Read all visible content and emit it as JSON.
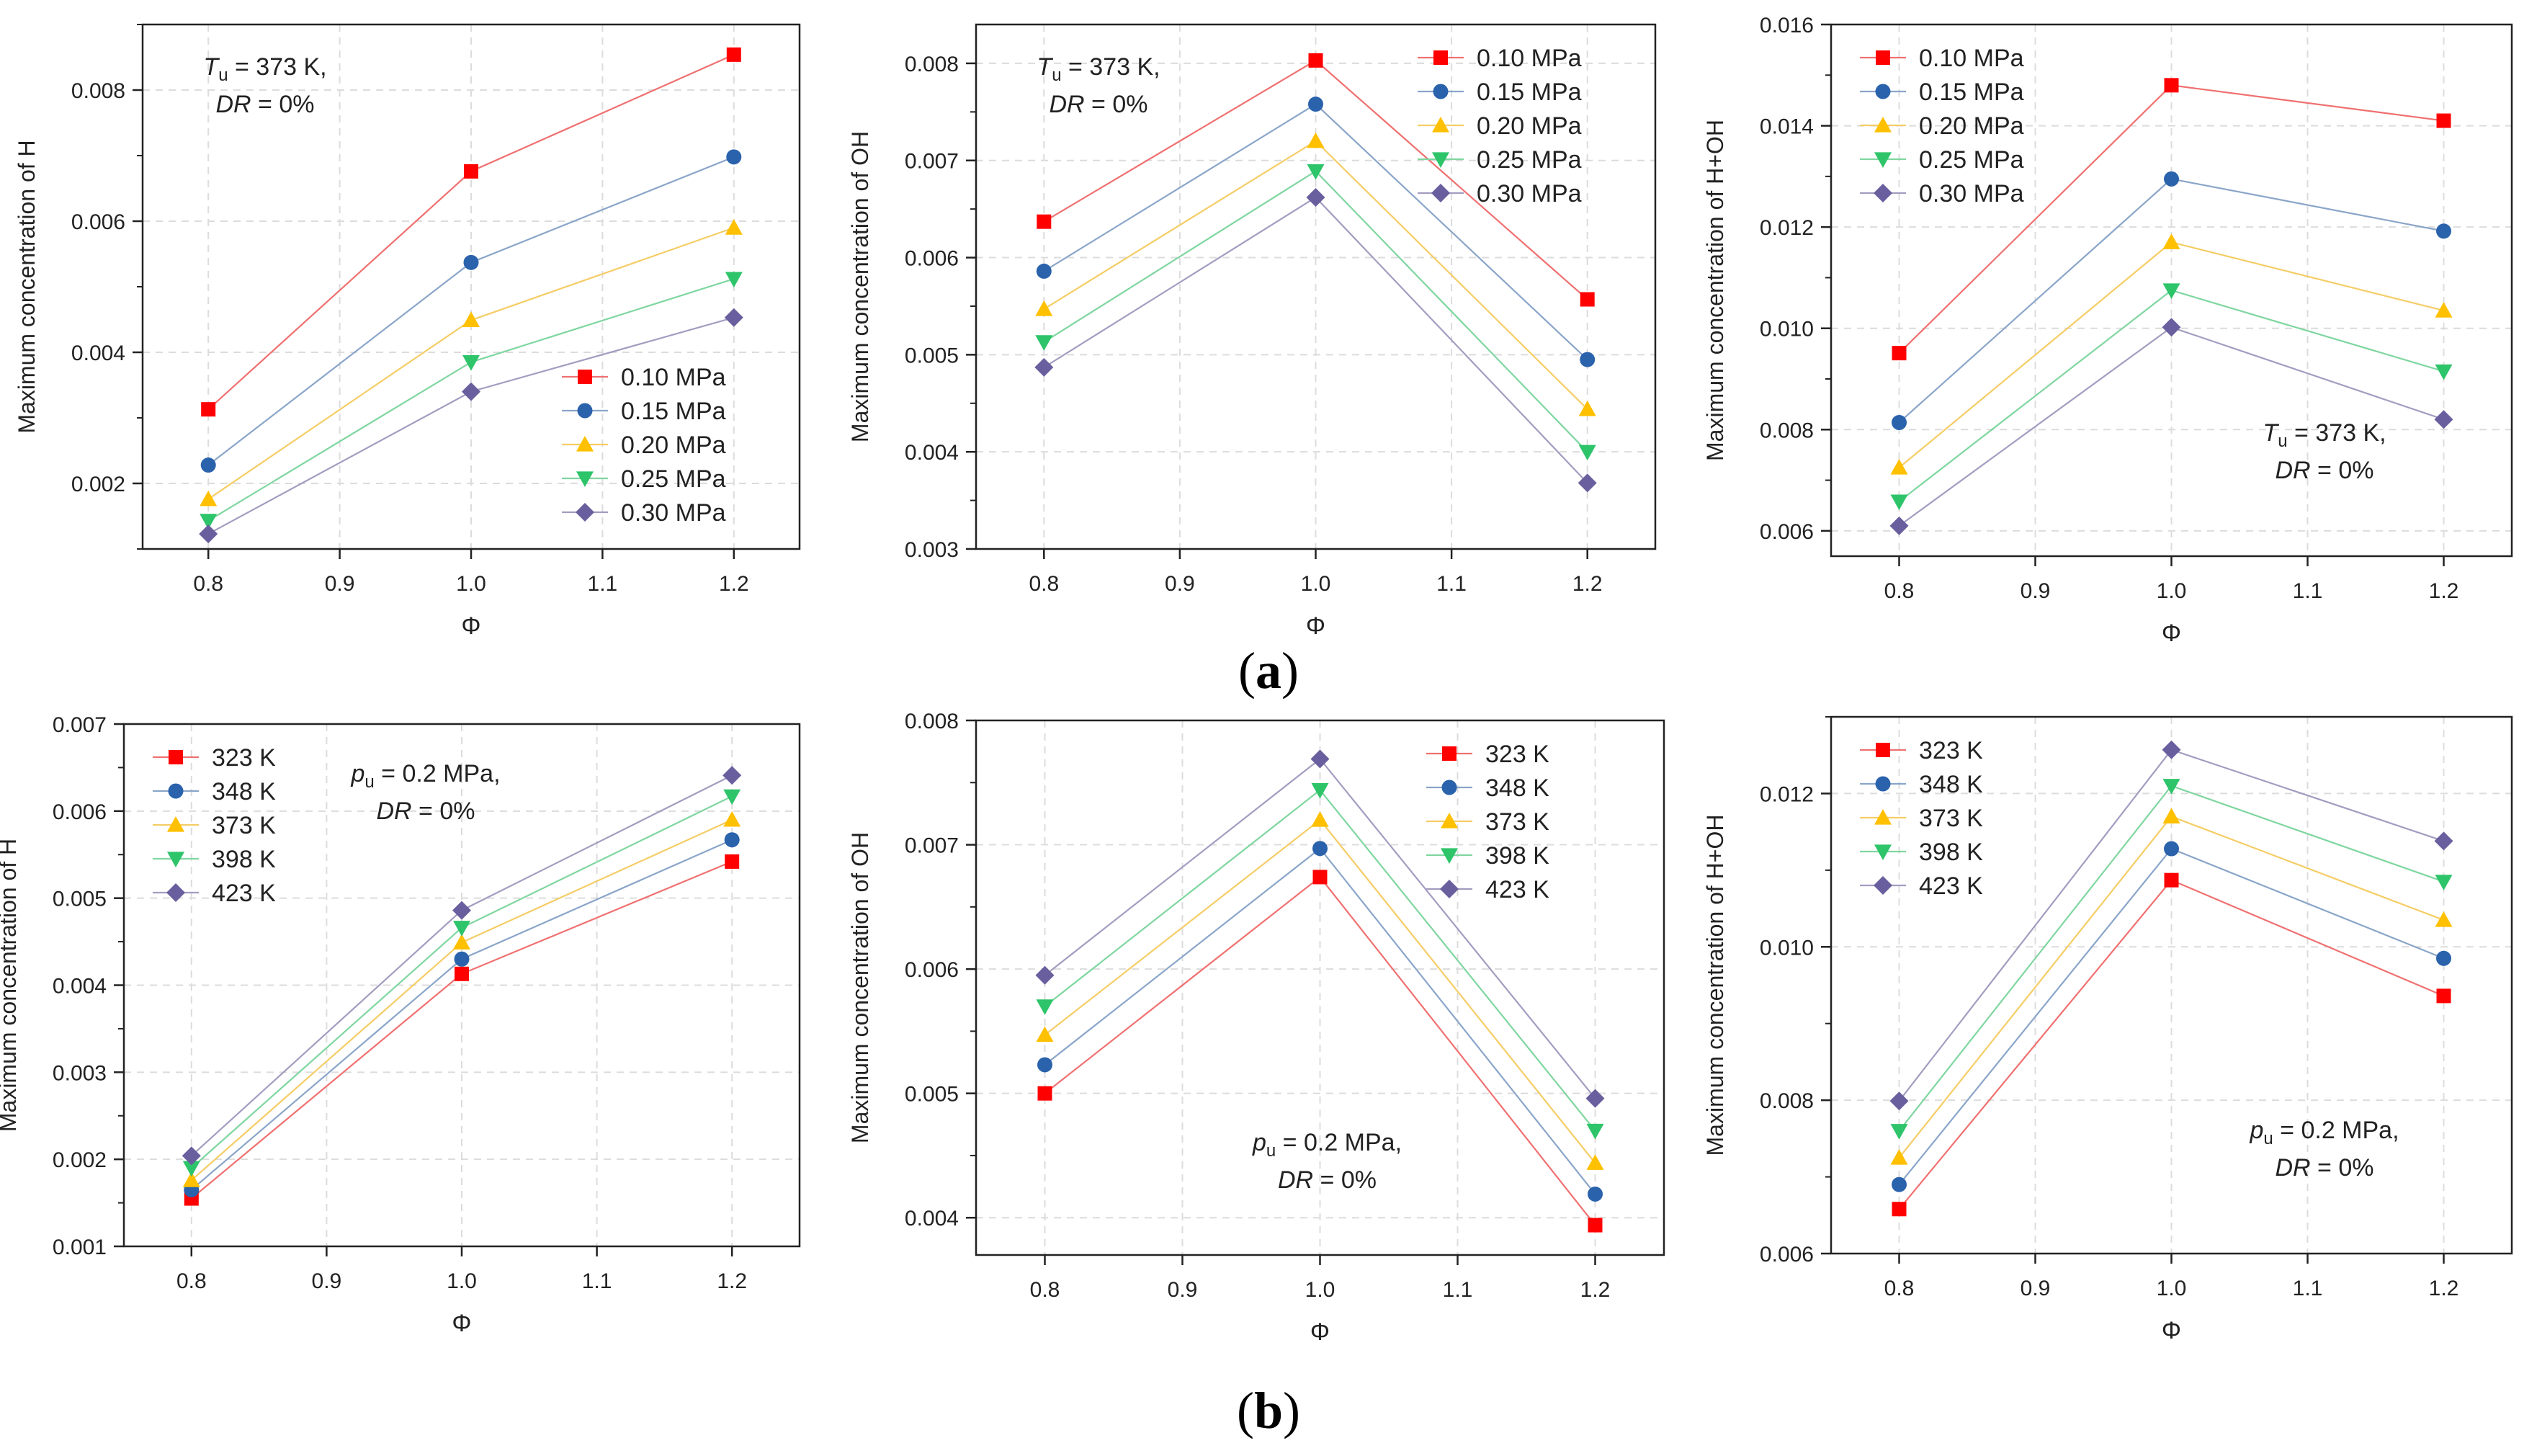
{
  "figure": {
    "row_labels": [
      {
        "letter": "a",
        "open": "(",
        "close": ")"
      },
      {
        "letter": "b",
        "open": "(",
        "close": ")"
      }
    ]
  },
  "styles": {
    "series_colors": [
      "#ff0000",
      "#2a62ac",
      "#ffc000",
      "#2ec46a",
      "#6a5f9e"
    ],
    "line_colors": [
      "#f07070",
      "#8aa5c9",
      "#f5cd66",
      "#7fd6a0",
      "#a49cc0"
    ],
    "markers": [
      "square",
      "circle",
      "triangle-up",
      "triangle-down",
      "diamond"
    ]
  },
  "chart_data": [
    {
      "id": "a1",
      "type": "line",
      "xlabel": "Φ",
      "ylabel": "Maximum concentration of H",
      "x": [
        0.8,
        1.0,
        1.2
      ],
      "xlim": [
        0.75,
        1.25
      ],
      "xticks": [
        "0.8",
        "0.9",
        "1.0",
        "1.1",
        "1.2"
      ],
      "ylim": [
        0.001,
        0.009
      ],
      "yticks": [
        "0.002",
        "0.004",
        "0.006",
        "0.008"
      ],
      "legend_position": "bottom-right",
      "annotation": {
        "line1": "T",
        "line1_sub": "u",
        "line1_rest": " = 373 K,",
        "line2_italic": "DR",
        "line2_rest": " = 0%",
        "position": "top-left"
      },
      "series": [
        {
          "name": "0.10 MPa",
          "values": [
            0.00313,
            0.00676,
            0.00854
          ]
        },
        {
          "name": "0.15 MPa",
          "values": [
            0.00228,
            0.00537,
            0.00698
          ]
        },
        {
          "name": "0.20 MPa",
          "values": [
            0.00176,
            0.00449,
            0.0059
          ]
        },
        {
          "name": "0.25 MPa",
          "values": [
            0.00143,
            0.00385,
            0.00512
          ]
        },
        {
          "name": "0.30 MPa",
          "values": [
            0.00123,
            0.0034,
            0.00453
          ]
        }
      ]
    },
    {
      "id": "a2",
      "type": "line",
      "xlabel": "Φ",
      "ylabel": "Maximum concentration of OH",
      "x": [
        0.8,
        1.0,
        1.2
      ],
      "xlim": [
        0.75,
        1.25
      ],
      "xticks": [
        "0.8",
        "0.9",
        "1.0",
        "1.1",
        "1.2"
      ],
      "ylim": [
        0.003,
        0.0084
      ],
      "yticks": [
        "0.003",
        "0.004",
        "0.005",
        "0.006",
        "0.007",
        "0.008"
      ],
      "legend_position": "top-right",
      "annotation": {
        "line1": "T",
        "line1_sub": "u",
        "line1_rest": " = 373 K,",
        "line2_italic": "DR",
        "line2_rest": " = 0%",
        "position": "top-left"
      },
      "series": [
        {
          "name": "0.10 MPa",
          "values": [
            0.00637,
            0.00803,
            0.00557
          ]
        },
        {
          "name": "0.15 MPa",
          "values": [
            0.00586,
            0.00758,
            0.00495
          ]
        },
        {
          "name": "0.20 MPa",
          "values": [
            0.00547,
            0.0072,
            0.00444
          ]
        },
        {
          "name": "0.25 MPa",
          "values": [
            0.00513,
            0.00689,
            0.004
          ]
        },
        {
          "name": "0.30 MPa",
          "values": [
            0.00487,
            0.00662,
            0.00368
          ]
        }
      ]
    },
    {
      "id": "a3",
      "type": "line",
      "xlabel": "Φ",
      "ylabel": "Maximum concentration of H+OH",
      "x": [
        0.8,
        1.0,
        1.2
      ],
      "xlim": [
        0.75,
        1.25
      ],
      "xticks": [
        "0.8",
        "0.9",
        "1.0",
        "1.1",
        "1.2"
      ],
      "ylim": [
        0.0055,
        0.016
      ],
      "yticks": [
        "0.006",
        "0.008",
        "0.010",
        "0.012",
        "0.014",
        "0.016"
      ],
      "legend_position": "top-left",
      "annotation": {
        "line1": "T",
        "line1_sub": "u",
        "line1_rest": " = 373 K,",
        "line2_italic": "DR",
        "line2_rest": " = 0%",
        "position": "bottom-right"
      },
      "series": [
        {
          "name": "0.10 MPa",
          "values": [
            0.00951,
            0.0148,
            0.0141
          ]
        },
        {
          "name": "0.15 MPa",
          "values": [
            0.00814,
            0.01295,
            0.01192
          ]
        },
        {
          "name": "0.20 MPa",
          "values": [
            0.00725,
            0.0117,
            0.01035
          ]
        },
        {
          "name": "0.25 MPa",
          "values": [
            0.00658,
            0.01075,
            0.00915
          ]
        },
        {
          "name": "0.30 MPa",
          "values": [
            0.0061,
            0.01002,
            0.0082
          ]
        }
      ]
    },
    {
      "id": "b1",
      "type": "line",
      "xlabel": "Φ",
      "ylabel": "Maximum concentration of H",
      "x": [
        0.8,
        1.0,
        1.2
      ],
      "xlim": [
        0.75,
        1.25
      ],
      "xticks": [
        "0.8",
        "0.9",
        "1.0",
        "1.1",
        "1.2"
      ],
      "ylim": [
        0.001,
        0.007
      ],
      "yticks": [
        "0.001",
        "0.002",
        "0.003",
        "0.004",
        "0.005",
        "0.006",
        "0.007"
      ],
      "legend_position": "top-left",
      "annotation": {
        "line1": "p",
        "line1_sub": "u",
        "line1_rest": " = 0.2 MPa,",
        "line2_italic": "DR",
        "line2_rest": " = 0%",
        "position": "top-center"
      },
      "series": [
        {
          "name": "323 K",
          "values": [
            0.00155,
            0.00413,
            0.00542
          ]
        },
        {
          "name": "348 K",
          "values": [
            0.00165,
            0.0043,
            0.00567
          ]
        },
        {
          "name": "373 K",
          "values": [
            0.00176,
            0.00449,
            0.0059
          ]
        },
        {
          "name": "398 K",
          "values": [
            0.0019,
            0.00466,
            0.00617
          ]
        },
        {
          "name": "423 K",
          "values": [
            0.00204,
            0.00486,
            0.00641
          ]
        }
      ]
    },
    {
      "id": "b2",
      "type": "line",
      "xlabel": "Φ",
      "ylabel": "Maximum concentration of OH",
      "x": [
        0.8,
        1.0,
        1.2
      ],
      "xlim": [
        0.75,
        1.25
      ],
      "xticks": [
        "0.8",
        "0.9",
        "1.0",
        "1.1",
        "1.2"
      ],
      "ylim": [
        0.0037,
        0.008
      ],
      "yticks": [
        "0.004",
        "0.005",
        "0.006",
        "0.007",
        "0.008"
      ],
      "legend_position": "top-right",
      "annotation": {
        "line1": "p",
        "line1_sub": "u",
        "line1_rest": " = 0.2 MPa,",
        "line2_italic": "DR",
        "line2_rest": " = 0%",
        "position": "bottom-center"
      },
      "series": [
        {
          "name": "323 K",
          "values": [
            0.005,
            0.00674,
            0.00394
          ]
        },
        {
          "name": "348 K",
          "values": [
            0.00523,
            0.00697,
            0.00419
          ]
        },
        {
          "name": "373 K",
          "values": [
            0.00547,
            0.0072,
            0.00444
          ]
        },
        {
          "name": "398 K",
          "values": [
            0.0057,
            0.00744,
            0.0047
          ]
        },
        {
          "name": "423 K",
          "values": [
            0.00595,
            0.00769,
            0.00496
          ]
        }
      ]
    },
    {
      "id": "b3",
      "type": "line",
      "xlabel": "Φ",
      "ylabel": "Maximum concentration of H+OH",
      "x": [
        0.8,
        1.0,
        1.2
      ],
      "xlim": [
        0.75,
        1.25
      ],
      "xticks": [
        "0.8",
        "0.9",
        "1.0",
        "1.1",
        "1.2"
      ],
      "ylim": [
        0.006,
        0.013
      ],
      "yticks": [
        "0.006",
        "0.008",
        "0.010",
        "0.012"
      ],
      "legend_position": "top-left",
      "annotation": {
        "line1": "p",
        "line1_sub": "u",
        "line1_rest": " = 0.2 MPa,",
        "line2_italic": "DR",
        "line2_rest": " = 0%",
        "position": "bottom-right"
      },
      "series": [
        {
          "name": "323 K",
          "values": [
            0.00658,
            0.01087,
            0.00936
          ]
        },
        {
          "name": "348 K",
          "values": [
            0.0069,
            0.01128,
            0.00985
          ]
        },
        {
          "name": "373 K",
          "values": [
            0.00725,
            0.0117,
            0.01035
          ]
        },
        {
          "name": "398 K",
          "values": [
            0.0076,
            0.0121,
            0.01085
          ]
        },
        {
          "name": "423 K",
          "values": [
            0.00799,
            0.01257,
            0.01138
          ]
        }
      ]
    }
  ]
}
